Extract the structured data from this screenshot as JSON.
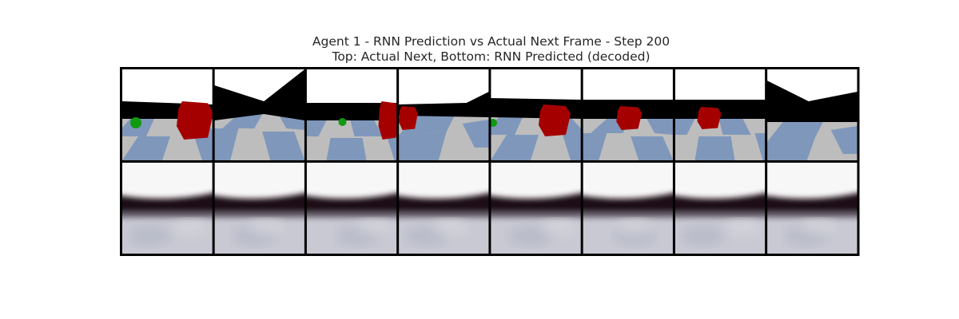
{
  "title": {
    "line1": "Agent 1 - RNN Prediction vs Actual Next Frame - Step 200",
    "line2": "Top: Actual Next, Bottom: RNN Predicted (decoded)"
  },
  "colors": {
    "sky": "#ffffff",
    "wall": "#000000",
    "floor_light": "#bdbdbd",
    "floor_blue": "#7f97bb",
    "red_box": "#a50000",
    "green_ball": "#0f9a0f",
    "frame_border": "#000000"
  },
  "frames": {
    "count": 8,
    "actual_next": [
      {
        "index": 1,
        "objects": [
          "green-ball",
          "red-box"
        ]
      },
      {
        "index": 2,
        "objects": []
      },
      {
        "index": 3,
        "objects": [
          "green-ball",
          "red-box"
        ]
      },
      {
        "index": 4,
        "objects": [
          "red-box"
        ]
      },
      {
        "index": 5,
        "objects": [
          "green-ball",
          "red-box"
        ]
      },
      {
        "index": 6,
        "objects": [
          "red-box"
        ]
      },
      {
        "index": 7,
        "objects": [
          "red-box"
        ]
      },
      {
        "index": 8,
        "objects": []
      }
    ],
    "rnn_predicted": [
      {
        "index": 1,
        "description": "blurred"
      },
      {
        "index": 2,
        "description": "blurred"
      },
      {
        "index": 3,
        "description": "blurred"
      },
      {
        "index": 4,
        "description": "blurred"
      },
      {
        "index": 5,
        "description": "blurred"
      },
      {
        "index": 6,
        "description": "blurred"
      },
      {
        "index": 7,
        "description": "blurred"
      },
      {
        "index": 8,
        "description": "blurred"
      }
    ]
  }
}
